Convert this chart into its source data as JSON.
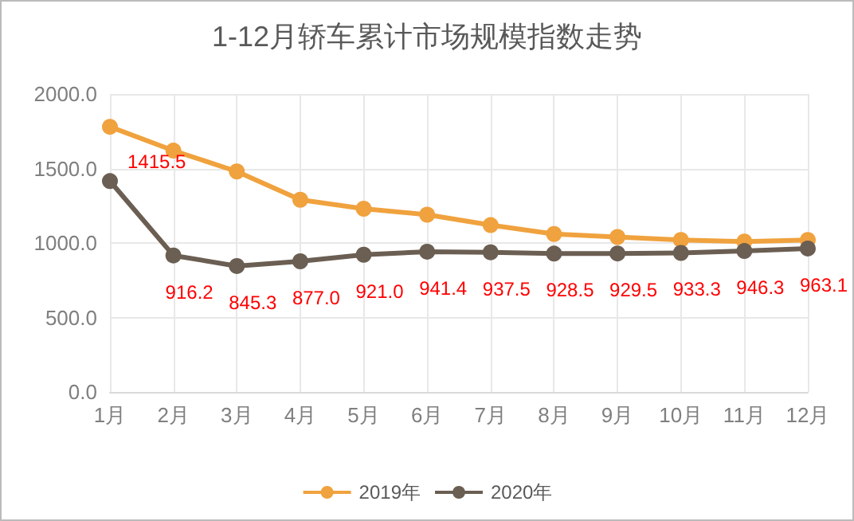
{
  "chart_data": {
    "type": "line",
    "title": "1-12月轿车累计市场规模指数走势",
    "categories": [
      "1月",
      "2月",
      "3月",
      "4月",
      "5月",
      "6月",
      "7月",
      "8月",
      "9月",
      "10月",
      "11月",
      "12月"
    ],
    "series": [
      {
        "name": "2019年",
        "color": "#f0a23e",
        "values": [
          1780,
          1620,
          1480,
          1290,
          1230,
          1190,
          1120,
          1060,
          1040,
          1020,
          1010,
          1020
        ]
      },
      {
        "name": "2020年",
        "color": "#6b5e52",
        "values": [
          1415.5,
          916.2,
          845.3,
          877,
          921,
          941.4,
          937.5,
          928.5,
          929.5,
          933.3,
          946.3,
          963.1
        ],
        "value_labels": [
          "1415.5",
          "916.2",
          "845.3",
          "877.0",
          "921.0",
          "941.4",
          "937.5",
          "928.5",
          "929.5",
          "933.3",
          "946.3",
          "963.1"
        ]
      }
    ],
    "ylim": [
      0,
      2000
    ],
    "yticks": [
      {
        "value": 0,
        "label": "0.0"
      },
      {
        "value": 500,
        "label": "500.0"
      },
      {
        "value": 1000,
        "label": "1000.0"
      },
      {
        "value": 1500,
        "label": "1500.0"
      },
      {
        "value": 2000,
        "label": "2000.0"
      }
    ],
    "grid": true,
    "legend": "bottom",
    "marker": "circle",
    "line_style": "solid"
  }
}
